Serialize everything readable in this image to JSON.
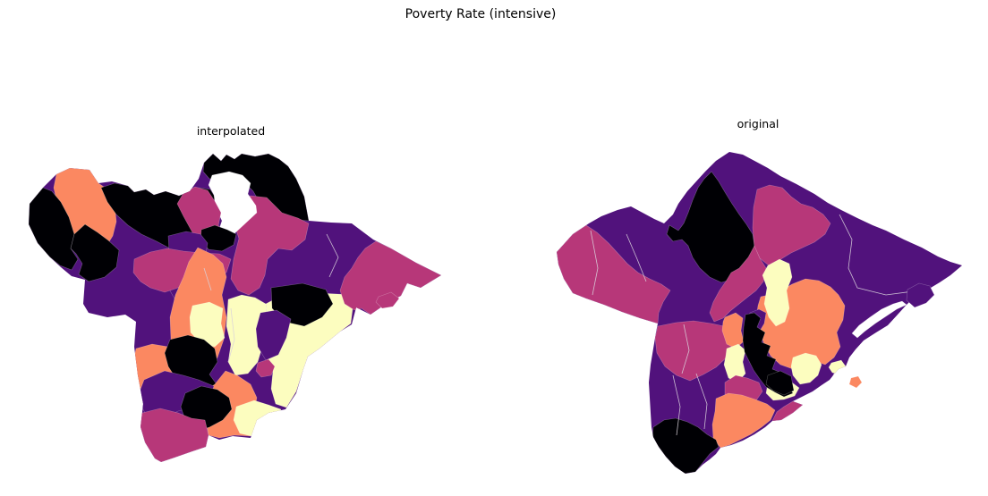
{
  "title": "Poverty Rate (intensive)",
  "palette": {
    "black": "#000004",
    "purple": "#51127c",
    "magenta": "#b73779",
    "orange": "#fb8861",
    "cream": "#fcfdbf",
    "water": "#ffffff"
  },
  "chart_data": {
    "type": "choropleth-map",
    "title": "Poverty Rate (intensive)",
    "variable": "Poverty Rate",
    "measure": "intensive",
    "colormap": "magma, 5 classes (black=#000004, purple=#51127c, magenta=#b73779, orange=#fb8861, cream=#fcfdbf)",
    "legend": "none shown",
    "axes": "off",
    "subplots": [
      {
        "label": "interpolated",
        "base_color": "purple",
        "silhouette": "33,228 48,210 63,195 78,188 100,190 110,205 125,203 143,208 150,215 163,212 172,218 185,214 200,219 212,214 222,200 228,182 238,172 247,180 253,173 262,178 270,172 285,175 300,172 312,178 322,186 331,200 340,220 345,247 370,249 393,250 417,268 437,278 465,294 493,308 470,322 455,317 448,331 430,341 414,352 398,344 393,363 380,371 357,390 344,399 339,413 331,440 319,458 300,462 287,470 280,490 260,488 245,492 233,487 230,500 215,505 195,512 180,517 173,513 162,495 157,478 160,452 154,420 150,388 152,360 140,352 120,355 99,350 93,340 95,313 80,309 68,299 56,288 42,272 32,251",
        "regions": [
          {
            "c": "orange",
            "p": "63,195 78,188 100,190 110,205 122,213 128,228 130,248 126,264 116,280 100,283 87,270 74,251 64,228 60,210"
          },
          {
            "c": "black",
            "p": "33,228 48,210 58,214 68,226 77,243 83,262 79,278 87,290 80,302 67,297 55,287 42,272 32,251"
          },
          {
            "c": "black",
            "p": "83,262 95,251 109,260 121,269 133,280 130,299 117,310 99,315 88,307 92,295 85,284 79,278"
          },
          {
            "c": "black",
            "p": "113,210 128,205 143,208 150,215 163,212 172,218 185,214 200,219 212,214 222,210 235,212 240,220 238,235 232,248 226,262 218,274 205,280 190,278 175,270 158,262 143,252 130,240 120,226"
          },
          {
            "c": "black",
            "p": "228,182 238,172 247,180 253,173 262,178 270,172 285,175 300,172 312,178 322,186 331,200 340,220 345,247 332,246 318,240 304,237 291,228 283,214 273,204 258,197 245,200 234,200 227,192"
          },
          {
            "c": "magenta",
            "p": "262,230 280,219 298,221 315,238 333,244 345,250 341,268 326,280 311,278 299,290 296,308 290,322 278,330 266,325 258,312 261,290 267,267 261,248"
          },
          {
            "c": "water",
            "p": "237,196 256,192 271,196 280,205 277,217 286,230 287,238 272,252 258,265 250,272 243,262 248,247 241,232 239,218 233,207"
          },
          {
            "c": "magenta",
            "p": "205,216 218,209 232,213 240,225 247,238 244,252 251,264 242,277 228,277 216,262 205,242 198,228"
          },
          {
            "c": "black",
            "p": "225,257 240,252 254,257 264,262 261,274 248,281 233,279 224,269"
          },
          {
            "c": "purple",
            "p": "188,264 208,259 224,262 232,272 229,290 232,312 224,325 209,331 196,336 187,320 184,300 189,282"
          },
          {
            "c": "magenta",
            "p": "150,290 168,282 187,278 205,281 225,283 245,284 258,290 253,305 238,310 224,307 209,315 199,322 184,327 168,322 157,315 149,305"
          },
          {
            "c": "orange",
            "p": "221,277 238,285 249,295 253,310 248,330 253,355 250,380 243,400 232,415 218,423 204,415 196,400 191,380 190,355 196,330 205,310 211,293"
          },
          {
            "c": "cream",
            "p": "215,342 234,338 249,345 247,362 251,378 240,388 225,385 213,372 212,355"
          },
          {
            "c": "cream",
            "p": "255,335 270,330 285,333 297,340 299,360 294,385 288,405 277,418 263,420 255,405 258,385 253,365"
          },
          {
            "c": "cream",
            "p": "321,330 358,328 396,330 392,362 380,371 357,390 344,399 339,413 331,438 320,456 308,452 303,435 305,415 297,400 294,385 299,360 297,340 310,333"
          },
          {
            "c": "black",
            "p": "303,322 338,317 364,324 372,340 360,355 340,365 318,360 304,345"
          },
          {
            "c": "purple",
            "p": "291,350 309,347 325,357 320,378 311,397 297,403 288,388 286,368"
          },
          {
            "c": "magenta",
            "p": "288,406 300,402 307,410 303,420 292,422 286,415"
          },
          {
            "c": "orange",
            "p": "152,390 170,385 188,388 197,398 194,415 199,430 190,445 175,450 162,445 153,430 148,410"
          },
          {
            "c": "black",
            "p": "190,380 210,375 228,380 240,390 243,405 234,419 242,430 228,438 210,433 197,424 188,410 184,395"
          },
          {
            "c": "orange",
            "p": "228,438 240,430 252,415 265,420 280,430 287,445 283,465 280,488 262,487 245,490 233,487 230,470 225,455"
          },
          {
            "c": "purple",
            "p": "161,425 184,415 205,420 222,425 239,432 234,448 219,455 199,460 182,468 168,472 158,455 156,438"
          },
          {
            "c": "black",
            "p": "207,440 225,432 243,436 256,445 259,458 249,470 234,478 218,483 207,470 202,455"
          },
          {
            "c": "magenta",
            "p": "159,462 179,457 199,462 214,468 229,470 233,487 230,500 215,505 195,512 180,517 173,513 162,495 157,478 154,468"
          },
          {
            "c": "cream",
            "p": "264,455 284,448 300,453 314,458 309,472 294,478 281,488 268,485 261,470"
          },
          {
            "c": "magenta",
            "p": "420,270 437,278 465,294 493,308 470,322 455,317 448,331 430,341 414,352 404,345 396,347 385,340 380,325 385,310 393,300 400,288 408,278"
          }
        ],
        "islands": [
          {
            "c": "magenta",
            "p": "423,332 437,327 446,334 439,343 427,345 420,338"
          }
        ],
        "lines": [
          "365,262 378,288 368,310",
          "258,345 262,380 255,405",
          "228,300 236,325"
        ]
      },
      {
        "label": "original",
        "base_color": "purple",
        "silhouette": "622,282 640,262 658,250 672,242 690,235 705,231 718,238 731,245 742,250 752,240 758,228 768,214 778,203 788,192 800,180 815,170 830,173 845,181 858,188 872,197 890,206 910,217 925,227 940,235 958,244 975,252 990,258 1010,268 1030,277 1048,287 1062,293 1075,297 1062,308 1050,316 1040,322 1032,330 1018,336 1012,342 1003,352 992,364 979,372 965,381 956,391 949,400 945,410 937,413 931,420 927,425 918,431 908,438 896,444 886,449 897,453 886,462 873,470 863,471 855,478 843,486 830,493 817,498 805,501 800,508 793,514 785,520 777,528 766,530 754,522 744,511 736,500 730,489 728,478 727,462 726,445 725,428 727,408 730,390 733,372 735,362 715,356 695,349 675,341 655,334 640,328 630,312 624,296",
        "regions": [
          {
            "c": "magenta",
            "p": "622,282 640,262 655,252 667,260 680,272 691,284 701,295 713,305 726,312 739,318 749,325 741,338 736,350 735,362 715,356 695,349 675,341 655,334 640,328 630,312 624,296"
          },
          {
            "c": "magenta",
            "p": "735,365 755,361 775,359 795,362 814,366 820,380 814,398 800,411 786,419 771,426 756,420 743,410 734,395 732,378"
          },
          {
            "c": "black",
            "p": "795,192 803,203 810,215 818,228 826,240 834,251 841,262 843,275 838,290 830,302 820,312 806,316 793,310 782,300 774,288 769,275 762,268 752,270 745,262 748,252 758,258 764,250 769,238 774,224 780,210 787,200"
          },
          {
            "c": "magenta",
            "p": "846,212 860,207 874,210 884,220 895,228 908,232 920,240 928,250 922,262 910,271 897,277 884,283 871,291 859,297 849,289 843,276 841,255 842,232"
          },
          {
            "c": "magenta",
            "p": "843,275 849,289 856,300 853,315 845,325 836,332 826,340 816,348 808,356 798,360 793,350 797,338 804,325 811,315 817,305 826,300 836,288"
          },
          {
            "c": "orange",
            "p": "850,332 868,328 885,318 900,312 915,314 928,321 937,330 944,342 942,358 935,372 939,388 932,400 922,408 910,404 898,408 886,413 872,408 861,398 854,385 848,370 845,355 847,342"
          },
          {
            "c": "cream",
            "p": "858,297 871,290 882,295 885,310 879,325 882,345 877,360 867,365 859,355 854,340 857,322 852,308"
          },
          {
            "c": "purple",
            "p": "838,350 848,346 856,350 854,362 848,372 840,368 836,358"
          },
          {
            "c": "orange",
            "p": "810,355 822,350 830,356 828,370 831,382 822,390 812,385 807,370 808,360"
          },
          {
            "c": "cream",
            "p": "812,390 825,385 833,392 830,405 833,418 824,428 814,423 809,408 811,398"
          },
          {
            "c": "cream",
            "p": "886,400 900,395 912,398 918,408 914,420 905,428 894,430 886,420 884,410"
          },
          {
            "c": "cream",
            "p": "856,440 858,428 872,424 885,428 893,434 888,443 876,447 864,448"
          },
          {
            "c": "black",
            "p": "833,352 843,350 850,356 846,366 855,372 851,383 861,387 857,398 867,402 863,413 873,417 869,428 880,431 886,440 876,444 866,439 856,433 849,424 842,414 837,404 832,394 830,381 831,366"
          },
          {
            "c": "black",
            "p": "858,420 872,415 884,421 887,437 876,442 864,437 856,430"
          },
          {
            "c": "magenta",
            "p": "810,428 822,420 835,423 848,428 852,438 845,448 832,445 820,448 810,442"
          },
          {
            "c": "orange",
            "p": "800,446 814,440 829,442 844,447 857,452 866,459 861,470 851,478 839,486 827,492 815,498 805,501 797,490 796,475 799,460"
          },
          {
            "c": "magenta",
            "p": "886,449 897,453 886,462 873,470 863,471 868,461 876,455"
          },
          {
            "c": "black",
            "p": "730,478 742,470 755,468 768,472 780,478 790,486 800,492 803,500 793,508 785,518 777,528 765,530 754,522 744,511 736,500 729,489"
          },
          {
            "c": "cream",
            "p": "929,406 940,403 945,410 939,419 930,417 926,411"
          },
          {
            "c": "water",
            "p": "1013,341 1002,346 990,354 978,362 966,371 958,378 952,373 960,364 972,355 985,346 998,340 1008,337"
          },
          {
            "c": "water",
            "p": "932,418 950,412 968,415 962,428 950,440 938,450 929,443 926,430"
          }
        ],
        "islands": [
          {
            "c": "purple",
            "p": "1014,324 1027,317 1039,320 1044,330 1035,339 1022,344 1013,336"
          },
          {
            "c": "orange",
            "p": "951,423 959,421 963,428 957,434 949,430"
          }
        ],
        "lines": [
          "700,262 712,290 722,315",
          "660,258 668,300 662,330",
          "938,240 952,268 948,300 958,322 990,330 1028,325",
          "752,420 760,455 756,487",
          "778,418 790,452 787,480",
          "764,363 770,392 762,418"
        ]
      }
    ]
  }
}
